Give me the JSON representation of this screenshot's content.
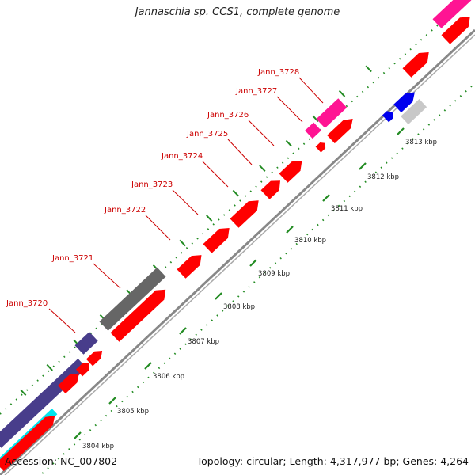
{
  "title": "Jannaschia sp. CCS1, complete genome",
  "accession_text": "Accession: NC_007802",
  "summary_text": "Topology: circular; Length: 4,317,977 bp; Genes: 4,264",
  "colors": {
    "forward_gene": "#ff0000",
    "highlight_gene": "#ff1493",
    "gray_gene": "#666666",
    "light_gray_gene": "#c8c8c8",
    "blue_gene": "#0000ee",
    "navy_gene": "#483d8b",
    "cyan_gene": "#00e5ee",
    "backbone": "#888888",
    "dotted_line": "#228b22",
    "label_color": "#cc0000"
  },
  "gene_labels": [
    {
      "name": "Jann_3720"
    },
    {
      "name": "Jann_3721"
    },
    {
      "name": "Jann_3722"
    },
    {
      "name": "Jann_3723"
    },
    {
      "name": "Jann_3724"
    },
    {
      "name": "Jann_3725"
    },
    {
      "name": "Jann_3726"
    },
    {
      "name": "Jann_3727"
    },
    {
      "name": "Jann_3728"
    }
  ],
  "scale_ticks": [
    {
      "label": "3804 kbp"
    },
    {
      "label": "3805 kbp"
    },
    {
      "label": "3806 kbp"
    },
    {
      "label": "3807 kbp"
    },
    {
      "label": "3808 kbp"
    },
    {
      "label": "3809 kbp"
    },
    {
      "label": "3810 kbp"
    },
    {
      "label": "3811 kbp"
    },
    {
      "label": "3812 kbp"
    },
    {
      "label": "3813 kbp"
    }
  ]
}
